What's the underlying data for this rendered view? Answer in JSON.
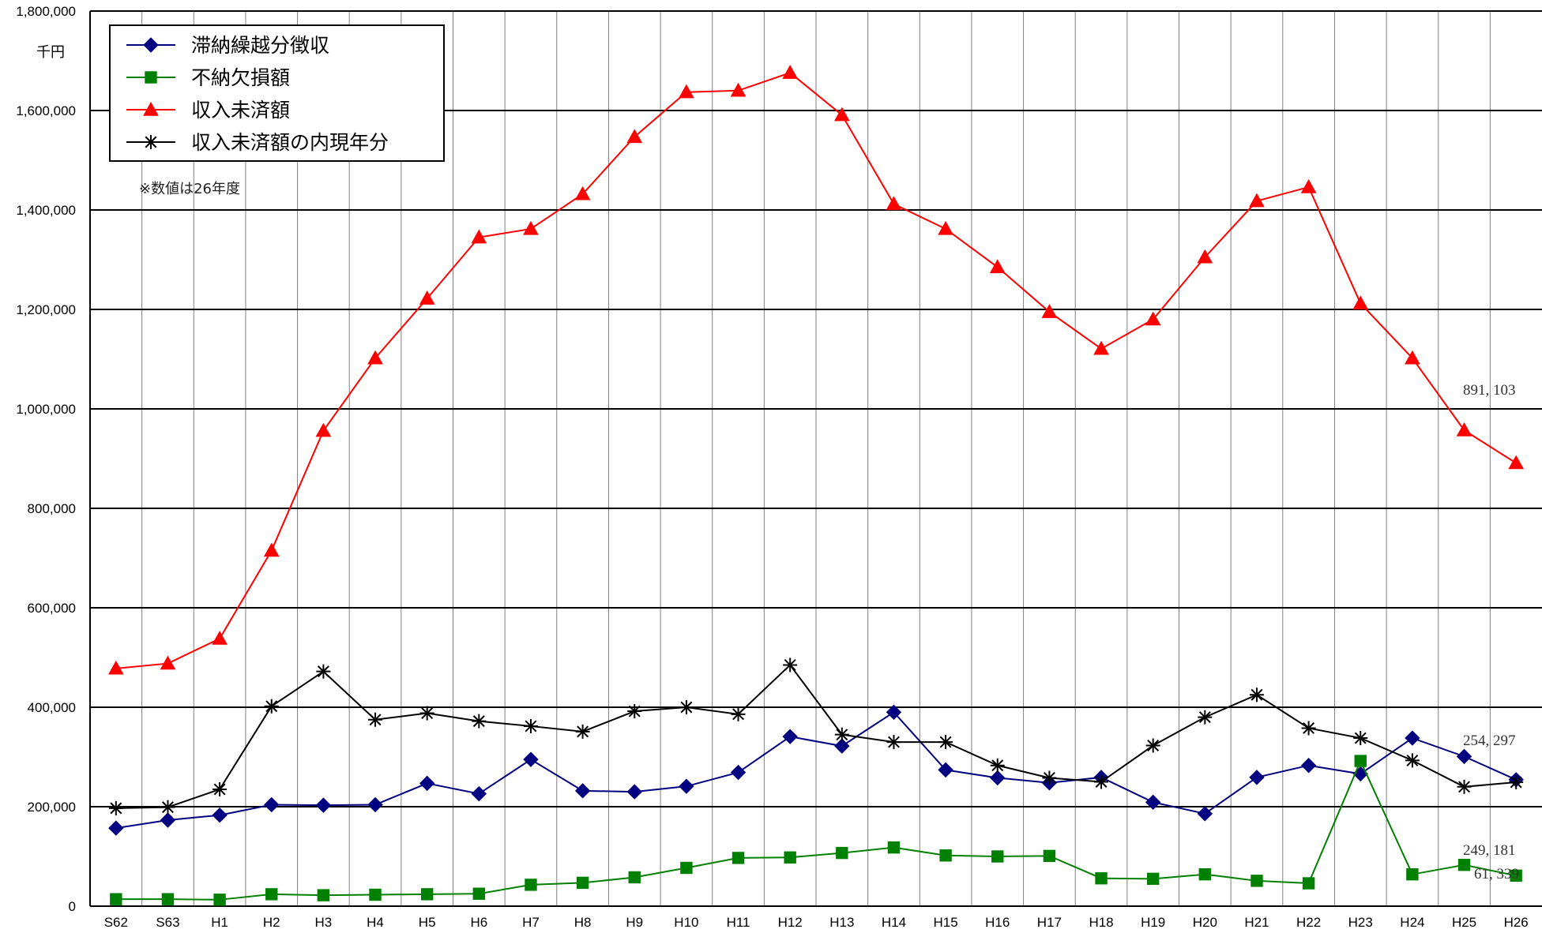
{
  "chart_data": {
    "type": "line",
    "unit_label": "千円",
    "note": "※数値は26年度",
    "ylim": [
      0,
      1800000
    ],
    "yticks": [
      0,
      200000,
      400000,
      600000,
      800000,
      1000000,
      1200000,
      1400000,
      1600000,
      1800000
    ],
    "ytick_labels": [
      "0",
      "200,000",
      "400,000",
      "600,000",
      "800,000",
      "1,000,000",
      "1,200,000",
      "1,400,000",
      "1,600,000",
      "1,800,000"
    ],
    "grid": true,
    "legend_position": "top-left",
    "categories": [
      "S62",
      "S63",
      "H1",
      "H2",
      "H3",
      "H4",
      "H5",
      "H6",
      "H7",
      "H8",
      "H9",
      "H10",
      "H11",
      "H12",
      "H13",
      "H14",
      "H15",
      "H16",
      "H17",
      "H18",
      "H19",
      "H20",
      "H21",
      "H22",
      "H23",
      "H24",
      "H25",
      "H26"
    ],
    "series": [
      {
        "name": "滞納繰越分徴収",
        "color": "#000080",
        "marker": "diamond",
        "values": [
          157000,
          173000,
          183000,
          204000,
          203000,
          204000,
          247000,
          226000,
          295000,
          232000,
          230000,
          241000,
          269000,
          341000,
          322000,
          390000,
          274000,
          258000,
          248000,
          259000,
          209000,
          186000,
          259000,
          283000,
          266000,
          338000,
          301000,
          254297
        ]
      },
      {
        "name": "不納欠損額",
        "color": "#008000",
        "marker": "square",
        "values": [
          14000,
          14000,
          13000,
          24000,
          22000,
          23000,
          24000,
          25000,
          43000,
          47000,
          58000,
          77000,
          97000,
          98000,
          107000,
          118000,
          102000,
          100000,
          101000,
          56000,
          55000,
          64000,
          51000,
          46000,
          292000,
          64000,
          83000,
          61339
        ]
      },
      {
        "name": "収入未済額",
        "color": "#ff0000",
        "marker": "triangle",
        "values": [
          478000,
          488000,
          538000,
          715000,
          956000,
          1102000,
          1222000,
          1345000,
          1362000,
          1432000,
          1547000,
          1637000,
          1640000,
          1676000,
          1591000,
          1412000,
          1362000,
          1285000,
          1195000,
          1121000,
          1180000,
          1305000,
          1418000,
          1446000,
          1212000,
          1102000,
          957000,
          891103
        ]
      },
      {
        "name": "収入未済額の内現年分",
        "color": "#000000",
        "marker": "asterisk",
        "values": [
          197000,
          199000,
          235000,
          402000,
          472000,
          375000,
          388000,
          372000,
          362000,
          351000,
          392000,
          400000,
          386000,
          485000,
          345000,
          330000,
          330000,
          283000,
          258000,
          250000,
          323000,
          380000,
          425000,
          358000,
          338000,
          293000,
          240000,
          249181
        ]
      }
    ],
    "annotations": [
      "891, 103",
      "254, 297",
      "249, 181",
      "61, 339"
    ]
  }
}
